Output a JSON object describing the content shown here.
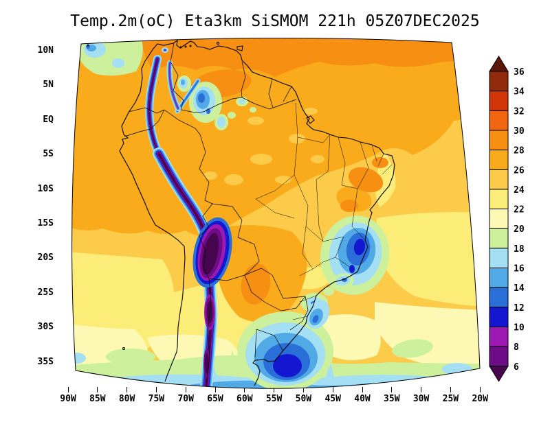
{
  "title": "Temp.2m(oC) Eta3km SiSMOM 221h 05Z07DEC2025",
  "axes": {
    "lat_labels": [
      "10N",
      "5N",
      "EQ",
      "5S",
      "10S",
      "15S",
      "20S",
      "25S",
      "30S",
      "35S"
    ],
    "lon_labels": [
      "90W",
      "85W",
      "80W",
      "75W",
      "70W",
      "65W",
      "60W",
      "55W",
      "50W",
      "45W",
      "40W",
      "35W",
      "30W",
      "25W",
      "20W"
    ]
  },
  "colorbar": {
    "units": "oC",
    "tick_labels": [
      "36",
      "34",
      "32",
      "30",
      "28",
      "26",
      "24",
      "22",
      "20",
      "18",
      "16",
      "14",
      "12",
      "10",
      "8",
      "6"
    ],
    "segments": [
      {
        "level": "gt36",
        "range": "> 36",
        "color": "#5c1606"
      },
      {
        "level": "34-36",
        "range": "34-36",
        "color": "#8f2a0b"
      },
      {
        "level": "32-34",
        "range": "32-34",
        "color": "#d13508"
      },
      {
        "level": "30-32",
        "range": "30-32",
        "color": "#f1660e"
      },
      {
        "level": "28-30",
        "range": "28-30",
        "color": "#f78f12"
      },
      {
        "level": "26-28",
        "range": "26-28",
        "color": "#f9ab1c"
      },
      {
        "level": "24-26",
        "range": "24-26",
        "color": "#fbcb49"
      },
      {
        "level": "22-24",
        "range": "22-24",
        "color": "#fcec78"
      },
      {
        "level": "20-22",
        "range": "20-22",
        "color": "#fdf9b4"
      },
      {
        "level": "18-20",
        "range": "18-20",
        "color": "#ccf09c"
      },
      {
        "level": "16-18",
        "range": "16-18",
        "color": "#a4dff3"
      },
      {
        "level": "14-16",
        "range": "14-16",
        "color": "#51a9e6"
      },
      {
        "level": "12-14",
        "range": "12-14",
        "color": "#2a6fd8"
      },
      {
        "level": "10-12",
        "range": "10-12",
        "color": "#1317cf"
      },
      {
        "level": "8-10",
        "range": "8-10",
        "color": "#9c1ab3"
      },
      {
        "level": "6-8",
        "range": "6-8",
        "color": "#6e0b87"
      },
      {
        "level": "lt6",
        "range": "< 6",
        "color": "#46054e"
      }
    ]
  },
  "chart_data": {
    "type": "heatmap",
    "title": "Temp.2m(oC) Eta3km SiSMOM 221h 05Z07DEC2025",
    "variable": "Temp.2m",
    "units": "oC",
    "model": "Eta3km SiSMOM",
    "forecast_hour": "221h",
    "valid_time": "05Z07DEC2025",
    "x_tick_labels": [
      "90W",
      "85W",
      "80W",
      "75W",
      "70W",
      "65W",
      "60W",
      "55W",
      "50W",
      "45W",
      "40W",
      "35W",
      "30W",
      "25W",
      "20W"
    ],
    "y_tick_labels": [
      "10N",
      "5N",
      "EQ",
      "5S",
      "10S",
      "15S",
      "20S",
      "25S",
      "30S",
      "35S"
    ],
    "colorbar_levels": [
      6,
      8,
      10,
      12,
      14,
      16,
      18,
      20,
      22,
      24,
      26,
      28,
      30,
      32,
      34,
      36
    ],
    "contour_interval": 2,
    "legend_position": "right",
    "grid": false,
    "projection_note": "curved (fan-shaped) regional model domain over South America",
    "regions": [
      {
        "area": "Andes cordillera (Ecuador-Peru-Bolivia-Chile)",
        "approx_temp_C": "below 6 to 12"
      },
      {
        "area": "Altiplano core (SW Peru / W Bolivia)",
        "approx_temp_C": "below 6"
      },
      {
        "area": "Caribbean / far northern edge of domain",
        "approx_temp_C": "28 to 30"
      },
      {
        "area": "Amazon basin, Venezuela llanos, NE Brazil interior",
        "approx_temp_C": "26 to 30"
      },
      {
        "area": "central Brazil and tropical oceans",
        "approx_temp_C": "24 to 28"
      },
      {
        "area": "Gran Chaco (Bolivia/Paraguay/N Argentina)",
        "approx_temp_C": "26 to 30"
      },
      {
        "area": "southeast Brazil highlands (Serra da Mantiqueira / Serra do Mar)",
        "approx_temp_C": "10 to 20"
      },
      {
        "area": "southern Brazil / Uruguay cold pool",
        "approx_temp_C": "10 to 18"
      },
      {
        "area": "subtropical South Atlantic and Pacific",
        "approx_temp_C": "18 to 24"
      },
      {
        "area": "southern ocean edge of domain (south of ~33S)",
        "approx_temp_C": "14 to 20"
      },
      {
        "area": "northern Colombia / Venezuela mountain patches",
        "approx_temp_C": "12 to 20"
      }
    ]
  }
}
